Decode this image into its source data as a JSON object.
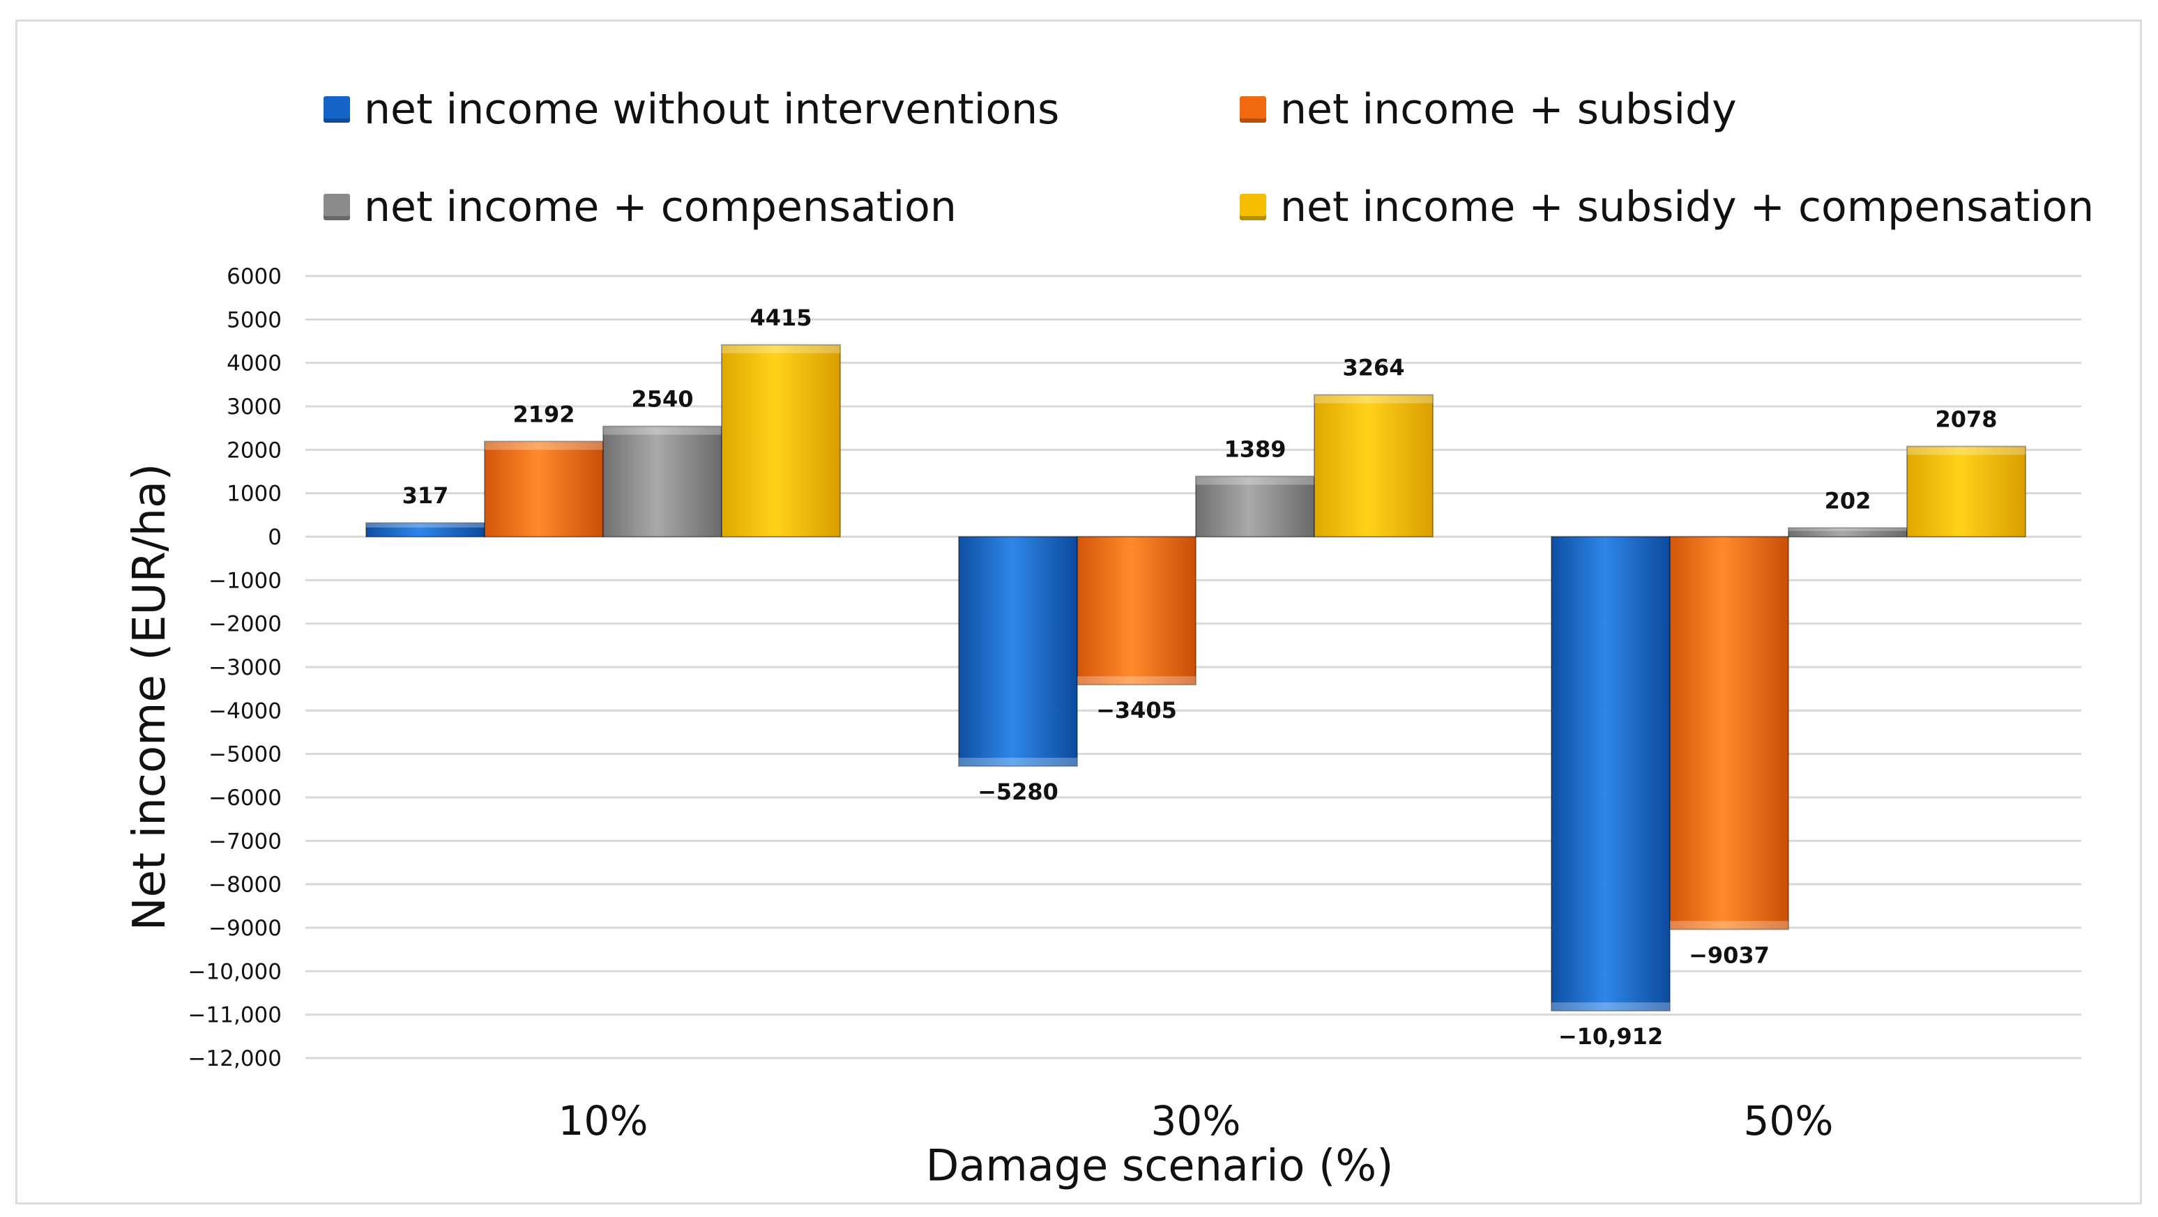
{
  "chart_data": {
    "type": "bar",
    "title": "",
    "xlabel": "Damage scenario (%)",
    "ylabel": "Net income (EUR/ha)",
    "categories": [
      "10%",
      "30%",
      "50%"
    ],
    "ylim": [
      -12000,
      6000
    ],
    "yticks": [
      {
        "value": 6000,
        "label": "6000"
      },
      {
        "value": 5000,
        "label": "5000"
      },
      {
        "value": 4000,
        "label": "4000"
      },
      {
        "value": 3000,
        "label": "3000"
      },
      {
        "value": 2000,
        "label": "2000"
      },
      {
        "value": 1000,
        "label": "1000"
      },
      {
        "value": 0,
        "label": "0"
      },
      {
        "value": -1000,
        "label": "−1000"
      },
      {
        "value": -2000,
        "label": "−2000"
      },
      {
        "value": -3000,
        "label": "−3000"
      },
      {
        "value": -4000,
        "label": "−4000"
      },
      {
        "value": -5000,
        "label": "−5000"
      },
      {
        "value": -6000,
        "label": "−6000"
      },
      {
        "value": -7000,
        "label": "−7000"
      },
      {
        "value": -8000,
        "label": "−8000"
      },
      {
        "value": -9000,
        "label": "−9000"
      },
      {
        "value": -10000,
        "label": "−10,000"
      },
      {
        "value": -11000,
        "label": "−11,000"
      },
      {
        "value": -12000,
        "label": "−12,000"
      }
    ],
    "grid": true,
    "legend_position": "top",
    "series": [
      {
        "name": "net income without interventions",
        "color": "#1565C8",
        "values": [
          317,
          -5280,
          -10912
        ],
        "labels": [
          "317",
          "−5280",
          "−10,912"
        ]
      },
      {
        "name": "net income + subsidy",
        "color": "#F26A0F",
        "values": [
          2192,
          -3405,
          -9037
        ],
        "labels": [
          "2192",
          "−3405",
          "−9037"
        ]
      },
      {
        "name": "net income + compensation",
        "color": "#8C8C8C",
        "values": [
          2540,
          1389,
          202
        ],
        "labels": [
          "2540",
          "1389",
          "202"
        ]
      },
      {
        "name": "net income + subsidy + compensation",
        "color": "#F5BE00",
        "values": [
          4415,
          3264,
          2078
        ],
        "labels": [
          "4415",
          "3264",
          "2078"
        ]
      }
    ]
  }
}
